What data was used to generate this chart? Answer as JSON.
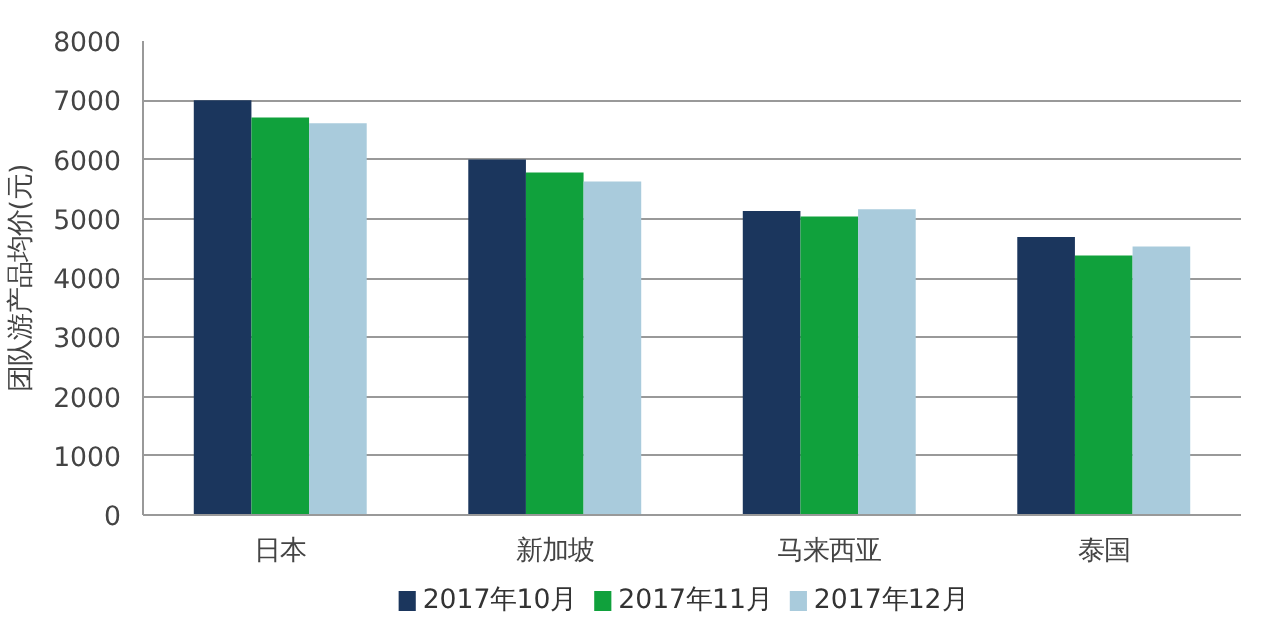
{
  "chart_data": {
    "type": "bar",
    "ylabel": "团队游产品均价(元)",
    "categories": [
      "日本",
      "新加坡",
      "马来西亚",
      "泰国"
    ],
    "series": [
      {
        "name": "2017年10月",
        "color": "#1b365d",
        "values": [
          7000,
          6000,
          5130,
          4690
        ]
      },
      {
        "name": "2017年11月",
        "color": "#10a13c",
        "values": [
          6710,
          5780,
          5040,
          4380
        ]
      },
      {
        "name": "2017年12月",
        "color": "#a9cbdc",
        "values": [
          6610,
          5630,
          5160,
          4530
        ]
      }
    ],
    "ylim": [
      0,
      8000
    ],
    "yticks": [
      0,
      1000,
      2000,
      3000,
      4000,
      5000,
      6000,
      7000,
      8000
    ],
    "grid": "y",
    "legend": "bottom"
  }
}
